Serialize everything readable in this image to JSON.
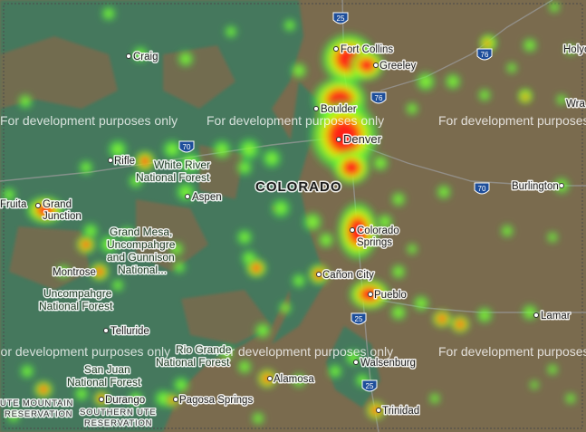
{
  "map": {
    "state_label": "COLORADO",
    "watermark": "For development purposes only",
    "cities": [
      {
        "name": "Fort Collins",
        "dot": true
      },
      {
        "name": "Greeley",
        "dot": true
      },
      {
        "name": "Boulder",
        "dot": true
      },
      {
        "name": "Denver",
        "dot": true
      },
      {
        "name": "Colorado",
        "dot": true
      },
      {
        "name": "Springs",
        "dot": false
      },
      {
        "name": "Pueblo",
        "dot": true
      },
      {
        "name": "Cañon City",
        "dot": true
      },
      {
        "name": "Walsenburg",
        "dot": true
      },
      {
        "name": "Trinidad",
        "dot": true
      },
      {
        "name": "Lamar",
        "dot": true
      },
      {
        "name": "Burlington",
        "dot": true
      },
      {
        "name": "Craig",
        "dot": true
      },
      {
        "name": "Rifle",
        "dot": true
      },
      {
        "name": "Aspen",
        "dot": true
      },
      {
        "name": "Fruita",
        "dot": true
      },
      {
        "name": "Grand",
        "dot": false
      },
      {
        "name": "Junction",
        "dot": false
      },
      {
        "name": "Montrose",
        "dot": true
      },
      {
        "name": "Telluride",
        "dot": true
      },
      {
        "name": "Durango",
        "dot": true
      },
      {
        "name": "Pagosa Springs",
        "dot": true
      },
      {
        "name": "Alamosa",
        "dot": true
      },
      {
        "name": "Holyo",
        "dot": false
      },
      {
        "name": "Wra",
        "dot": false
      }
    ],
    "forests": [
      {
        "lines": [
          "White River",
          "National Forest"
        ]
      },
      {
        "lines": [
          "Grand Mesa,",
          "Uncompahgre",
          "and Gunnison",
          "National..."
        ]
      },
      {
        "lines": [
          "Uncompahgre",
          "National Forest"
        ]
      },
      {
        "lines": [
          "Rio Grande",
          "National Forest"
        ]
      },
      {
        "lines": [
          "San Juan",
          "National Forest"
        ]
      }
    ],
    "reservations": [
      {
        "lines": [
          "UTE MOUNTAIN",
          "RESERVATION"
        ]
      },
      {
        "lines": [
          "SOUTHERN UTE",
          "RESERVATION"
        ]
      }
    ],
    "highway_shields": [
      "25",
      "76",
      "76",
      "70",
      "70",
      "25",
      "25"
    ],
    "colors": {
      "land": "#7a6b4e",
      "forest": "#3f7a5e",
      "heat_low": "#3cff3c",
      "heat_mid": "#e6ff00",
      "heat_high": "#ff1a1a"
    }
  }
}
